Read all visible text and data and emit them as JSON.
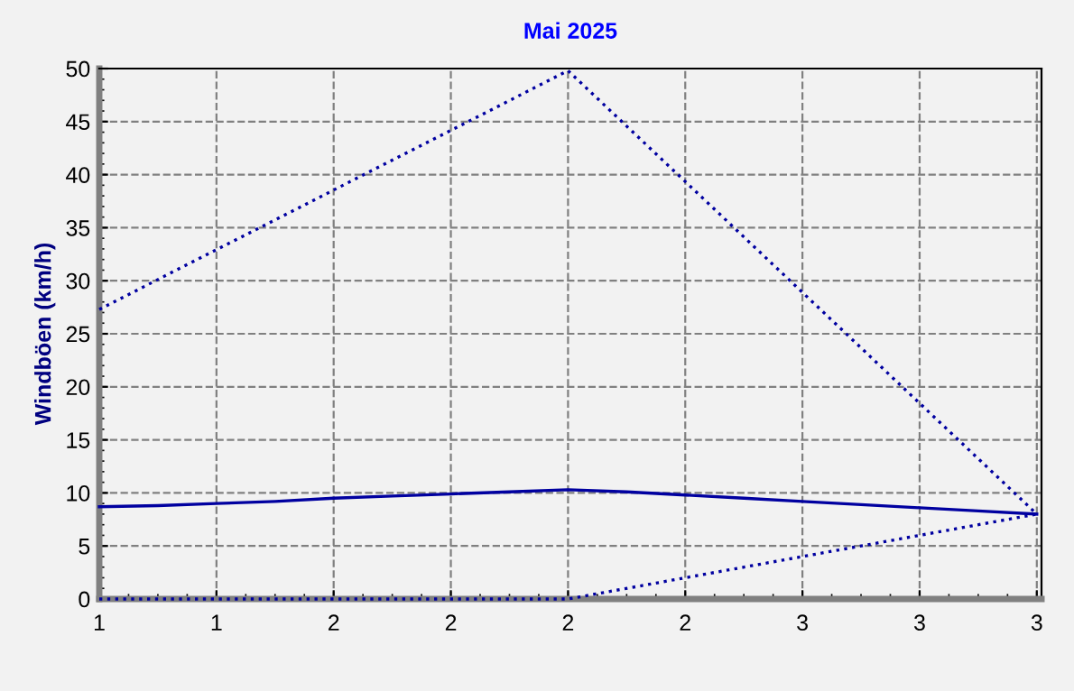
{
  "chart_data": {
    "type": "line",
    "title": "Mai 2025",
    "ylabel": "Windböen (km/h)",
    "x": [
      1,
      1.125,
      1.25,
      1.375,
      1.5,
      1.625,
      1.75,
      1.875,
      2,
      2.125,
      2.25,
      2.375,
      2.5,
      2.625,
      2.75,
      2.875,
      3
    ],
    "series": [
      {
        "color": "#0000a0",
        "line_style": "dotted",
        "x": [
          1,
          2,
          3
        ],
        "values": [
          27.3,
          49.8,
          8
        ]
      },
      {
        "color": "#0000a0",
        "line_style": "solid",
        "values": [
          8.7,
          8.8,
          9.0,
          9.2,
          9.5,
          9.7,
          9.9,
          10.1,
          10.3,
          10.1,
          9.8,
          9.5,
          9.2,
          8.9,
          8.6,
          8.3,
          8.0
        ]
      },
      {
        "color": "#0000a0",
        "line_style": "dotted",
        "x": [
          1,
          2,
          3
        ],
        "values": [
          0,
          0,
          8
        ]
      }
    ],
    "xlim": [
      1,
      3.01
    ],
    "xticks": [
      {
        "value": 1,
        "label": "1"
      },
      {
        "value": 1.25,
        "label": "1"
      },
      {
        "value": 1.5,
        "label": "2"
      },
      {
        "value": 1.75,
        "label": "2"
      },
      {
        "value": 2,
        "label": "2"
      },
      {
        "value": 2.25,
        "label": "2"
      },
      {
        "value": 2.5,
        "label": "3"
      },
      {
        "value": 2.75,
        "label": "3"
      },
      {
        "value": 3,
        "label": "3"
      }
    ],
    "ylim": [
      0,
      50
    ],
    "yticks": [
      0,
      5,
      10,
      15,
      20,
      25,
      30,
      35,
      40,
      45,
      50
    ],
    "grid": true,
    "legend": false
  }
}
